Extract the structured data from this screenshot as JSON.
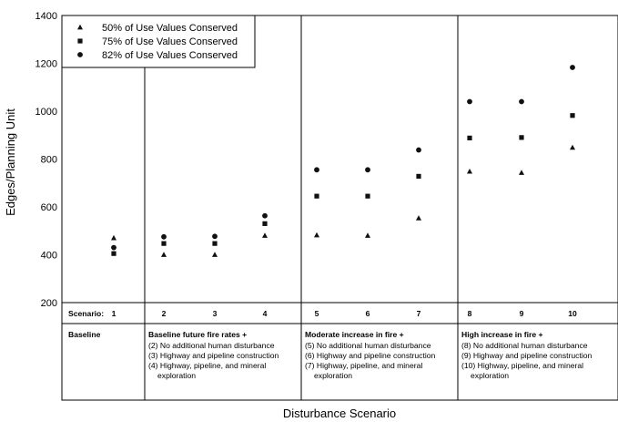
{
  "chart_data": {
    "type": "scatter",
    "ylabel": "Edges/Planning Unit",
    "xlabel": "Disturbance Scenario",
    "ylim": [
      200,
      1400
    ],
    "yticks": [
      "200",
      "400",
      "600",
      "800",
      "1000",
      "1200",
      "1400"
    ],
    "scenario_prefix": "Scenario:",
    "categories": [
      "1",
      "2",
      "3",
      "4",
      "5",
      "6",
      "7",
      "8",
      "9",
      "10"
    ],
    "legend_position": "top-left",
    "series": [
      {
        "name": "50% of Use Values Conserved",
        "marker": "triangle",
        "values": [
          470,
          400,
          400,
          480,
          482,
          480,
          553,
          748,
          743,
          848
        ]
      },
      {
        "name": "75% of Use Values Conserved",
        "marker": "square",
        "values": [
          405,
          447,
          447,
          530,
          645,
          645,
          728,
          888,
          890,
          982
        ]
      },
      {
        "name": "82% of Use Values Conserved",
        "marker": "circle",
        "values": [
          430,
          475,
          477,
          563,
          755,
          755,
          838,
          1040,
          1040,
          1183
        ]
      }
    ],
    "groups": [
      {
        "title": "Baseline",
        "lines": []
      },
      {
        "title": "Baseline future fire rates +",
        "lines": [
          "(2) No additional human disturbance",
          "(3) Highway and pipeline construction",
          "(4) Highway, pipeline, and mineral",
          "exploration"
        ]
      },
      {
        "title": "Moderate increase in fire +",
        "lines": [
          "(5) No additional human disturbance",
          "(6) Highway and pipeline construction",
          "(7) Highway, pipeline, and mineral",
          "exploration"
        ]
      },
      {
        "title": "High increase in fire +",
        "lines": [
          "(8) No additional human disturbance",
          "(9) Highway and pipeline construction",
          "(10) Highway, pipeline, and mineral",
          "exploration"
        ]
      }
    ]
  }
}
